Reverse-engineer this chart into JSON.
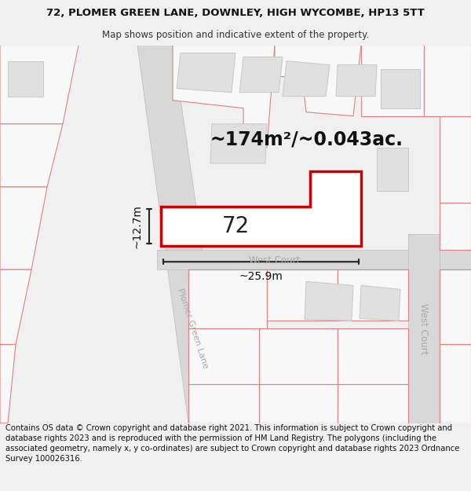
{
  "title_line1": "72, PLOMER GREEN LANE, DOWNLEY, HIGH WYCOMBE, HP13 5TT",
  "title_line2": "Map shows position and indicative extent of the property.",
  "area_label": "~174m²/~0.043ac.",
  "width_label": "~25.9m",
  "height_label": "~12.7m",
  "property_number": "72",
  "street_label1": "Plomer Green Lane",
  "street_label2": "West Court",
  "street_label3": "West Court",
  "footer_text": "Contains OS data © Crown copyright and database right 2021. This information is subject to Crown copyright and database rights 2023 and is reproduced with the permission of HM Land Registry. The polygons (including the associated geometry, namely x, y co-ordinates) are subject to Crown copyright and database rights 2023 Ordnance Survey 100026316.",
  "bg_color": "#f0f0f0",
  "map_bg": "#f8f8f8",
  "parcel_outline": "#e08080",
  "parcel_fill": "#f8f8f8",
  "building_fill": "#e0e0e0",
  "building_stroke": "#c8c8c8",
  "road_fill": "#d8d8d8",
  "road_stroke": "#bbbbbb",
  "property_fill": "#ffffff",
  "property_stroke": "#cc0000",
  "dim_color": "#222222",
  "street_color": "#aaaaaa",
  "title_fs": 9.5,
  "subtitle_fs": 8.5,
  "area_fs": 17,
  "number_fs": 20,
  "dim_fs": 10,
  "street_fs1": 8,
  "street_fs2": 8.5,
  "street_fs3": 8.5,
  "footer_fs": 7.2
}
